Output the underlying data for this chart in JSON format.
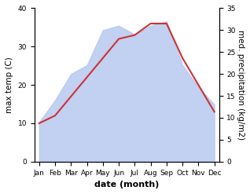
{
  "months": [
    "Jan",
    "Feb",
    "Mar",
    "Apr",
    "May",
    "Jun",
    "Jul",
    "Aug",
    "Sep",
    "Oct",
    "Nov",
    "Dec"
  ],
  "temperature": [
    10,
    12,
    17,
    22,
    27,
    32,
    33,
    36,
    36,
    27,
    20,
    13
  ],
  "precipitation": [
    9,
    14,
    20,
    22,
    30,
    31,
    29,
    31,
    32,
    22,
    17,
    13
  ],
  "temp_ylim": [
    0,
    40
  ],
  "precip_ylim": [
    0,
    35
  ],
  "temp_color": "#cc3333",
  "precip_fill_color": "#b8c8f0",
  "precip_fill_alpha": 0.85,
  "precip_line_color": "#b8c8f0",
  "xlabel": "date (month)",
  "ylabel_left": "max temp (C)",
  "ylabel_right": "med. precipitation (kg/m2)",
  "bg_color": "#ffffff",
  "temp_yticks": [
    0,
    10,
    20,
    30,
    40
  ],
  "precip_yticks": [
    0,
    5,
    10,
    15,
    20,
    25,
    30,
    35
  ],
  "axis_fontsize": 7.5,
  "tick_fontsize": 6.5,
  "xlabel_fontsize": 8
}
